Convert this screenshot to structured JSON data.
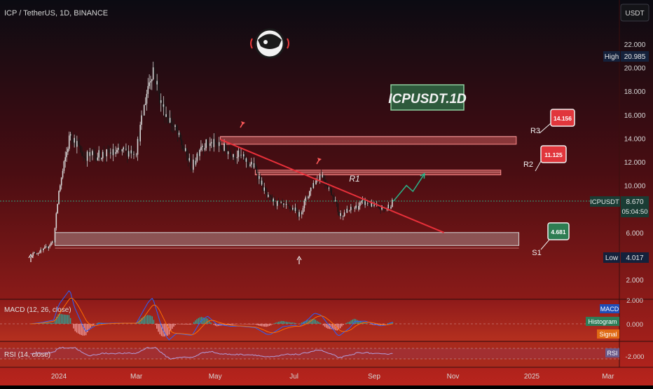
{
  "header": {
    "symbol_title": "ICP / TetherUS, 1D, BINANCE",
    "currency": "USDT"
  },
  "watermark": {
    "label": "ICPUSDT.1D"
  },
  "colors": {
    "background_top": "#0b0b12",
    "background_bottom": "#b8241d",
    "candle_up": "#c9c9c9",
    "candle_down": "#1a1a1a",
    "resistance_line": "#e8303a",
    "zone_fill": "#e46a6a",
    "support_fill": "#c8c8c8",
    "arrow": "#2ab58a",
    "macd": "#2962ff",
    "signal": "#ff6d00",
    "rsi": "#7e57c2"
  },
  "price_axis": {
    "ticks": [
      "22.000",
      "20.000",
      "18.000",
      "16.000",
      "14.000",
      "12.000",
      "10.000",
      "8.000",
      "6.000",
      "4.000",
      "2.000"
    ],
    "high_label": "High",
    "high_value": "20.985",
    "low_label": "Low",
    "low_value": "4.017",
    "last_symbol": "ICPUSDT",
    "last_price": "8.670",
    "countdown": "05:04:50"
  },
  "levels": [
    {
      "name": "R3",
      "value": "14.156"
    },
    {
      "name": "R2",
      "value": "11.125"
    },
    {
      "name": "S1",
      "value": "4.681"
    }
  ],
  "trendline_label": "R1",
  "time_axis": {
    "labels": [
      "2024",
      "Mar",
      "May",
      "Jul",
      "Sep",
      "Nov",
      "2025",
      "Mar"
    ]
  },
  "macd_panel": {
    "title": "MACD (12, 26, close)",
    "axis_ticks": [
      "2.000",
      "0.000",
      "-2.000"
    ],
    "legend": [
      "MACD",
      "Histogram",
      "Signal"
    ]
  },
  "rsi_panel": {
    "title": "RSI (14, close)",
    "legend": [
      "RSI"
    ]
  },
  "chart_data": {
    "type": "line",
    "title": "ICP / TetherUS, 1D, BINANCE",
    "x": [
      "2023-12-10",
      "2023-12-20",
      "2023-12-28",
      "2024-01-01",
      "2024-01-10",
      "2024-01-20",
      "2024-02-01",
      "2024-02-15",
      "2024-03-01",
      "2024-03-10",
      "2024-03-14",
      "2024-03-20",
      "2024-04-01",
      "2024-04-13",
      "2024-04-20",
      "2024-05-01",
      "2024-05-10",
      "2024-05-20",
      "2024-06-01",
      "2024-06-10",
      "2024-06-20",
      "2024-07-01",
      "2024-07-05",
      "2024-07-15",
      "2024-07-22",
      "2024-08-01",
      "2024-08-05",
      "2024-08-15",
      "2024-08-25",
      "2024-09-01",
      "2024-09-10",
      "2024-09-16"
    ],
    "series": [
      {
        "values": [
          4.1,
          4.5,
          5.3,
          9.5,
          14.5,
          12.5,
          12.6,
          12.8,
          13.0,
          18.5,
          20.0,
          17.0,
          14.5,
          11.5,
          13.5,
          13.5,
          13.0,
          12.5,
          11.5,
          9.0,
          8.3,
          8.0,
          7.5,
          10.0,
          11.0,
          9.0,
          7.5,
          8.0,
          8.6,
          8.2,
          8.0,
          8.67
        ]
      }
    ],
    "price_range": [
      1.0,
      23.0
    ],
    "levels": {
      "R3": 14.156,
      "R2": 11.125,
      "S1": 4.681
    },
    "zones": [
      {
        "name": "R3",
        "low": 13.5,
        "high": 14.15
      },
      {
        "name": "R2",
        "low": 10.9,
        "high": 11.3
      },
      {
        "name": "S1",
        "low": 4.9,
        "high": 6.0
      }
    ],
    "trendline": {
      "from": [
        "2024-05-05",
        13.9
      ],
      "to": [
        "2024-10-25",
        6.0
      ]
    },
    "projection": [
      [
        "2024-09-16",
        8.67
      ],
      [
        "2024-09-26",
        10.0
      ],
      [
        "2024-10-01",
        9.5
      ],
      [
        "2024-10-10",
        11.0
      ]
    ],
    "high": 20.985,
    "low": 4.017,
    "last": 8.67,
    "grid": false,
    "legend_position": "none"
  }
}
